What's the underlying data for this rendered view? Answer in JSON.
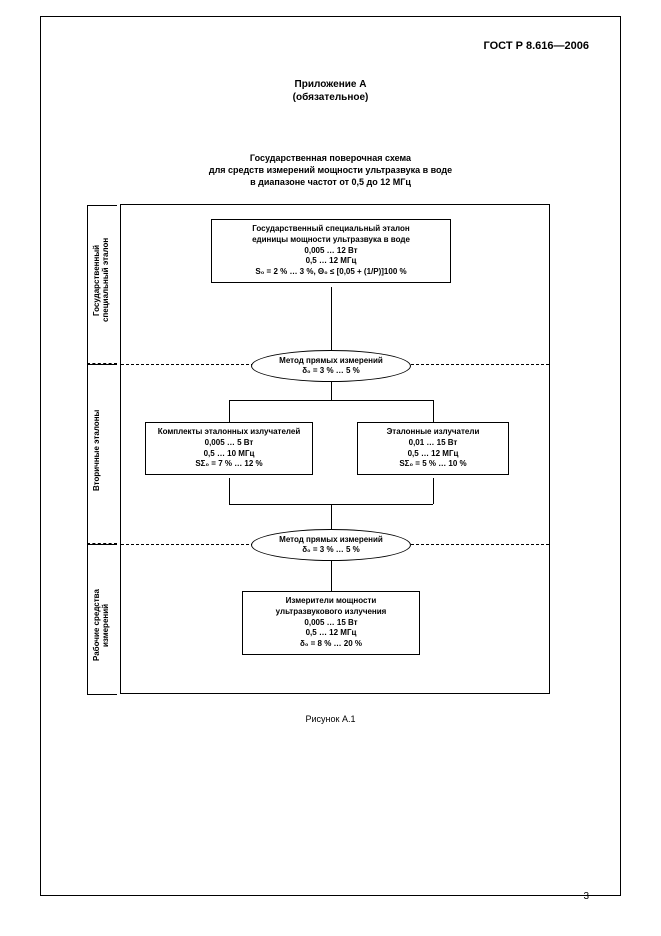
{
  "doc_code": "ГОСТ Р 8.616—2006",
  "appendix_label": "Приложение А",
  "appendix_type": "(обязательное)",
  "title_l1": "Государственная поверочная схема",
  "title_l2": "для средств измерений мощности ультразвука в воде",
  "title_l3": "в диапазоне частот от 0,5 до 12 МГц",
  "row_labels": {
    "r1": "Государственный\nспециальный эталон",
    "r2": "Вторичные эталоны",
    "r3": "Рабочие средства\nизмерений"
  },
  "nodes": {
    "etalon": {
      "l1": "Государственный специальный эталон",
      "l2": "единицы мощности ультразвука в воде",
      "l3": "0,005 … 12 Вт",
      "l4": "0,5 … 12 МГц",
      "l5": "S₀ = 2 % … 3 %, Θ₀ ≤ [0,05 + (1/P)]100 %"
    },
    "method1": {
      "l1": "Метод прямых измерений",
      "l2": "δ₀ = 3 % … 5 %"
    },
    "set": {
      "l1": "Комплекты эталонных излучателей",
      "l2": "0,005 … 5 Вт",
      "l3": "0,5 … 10 МГц",
      "l4": "SΣ₀ = 7 % … 12 %"
    },
    "emitters": {
      "l1": "Эталонные излучатели",
      "l2": "0,01 … 15 Вт",
      "l3": "0,5 … 12 МГц",
      "l4": "SΣ₀ = 5 % … 10 %"
    },
    "method2": {
      "l1": "Метод прямых измерений",
      "l2": "δ₀ = 3 % … 5 %"
    },
    "meters": {
      "l1": "Измерители мощности",
      "l2": "ультразвукового излучения",
      "l3": "0,005 … 15 Вт",
      "l4": "0,5 … 12 МГц",
      "l5": "δ₀ = 8 % … 20 %"
    }
  },
  "caption": "Рисунок А.1",
  "page_number": "3",
  "colors": {
    "border": "#000000",
    "bg": "#ffffff"
  }
}
